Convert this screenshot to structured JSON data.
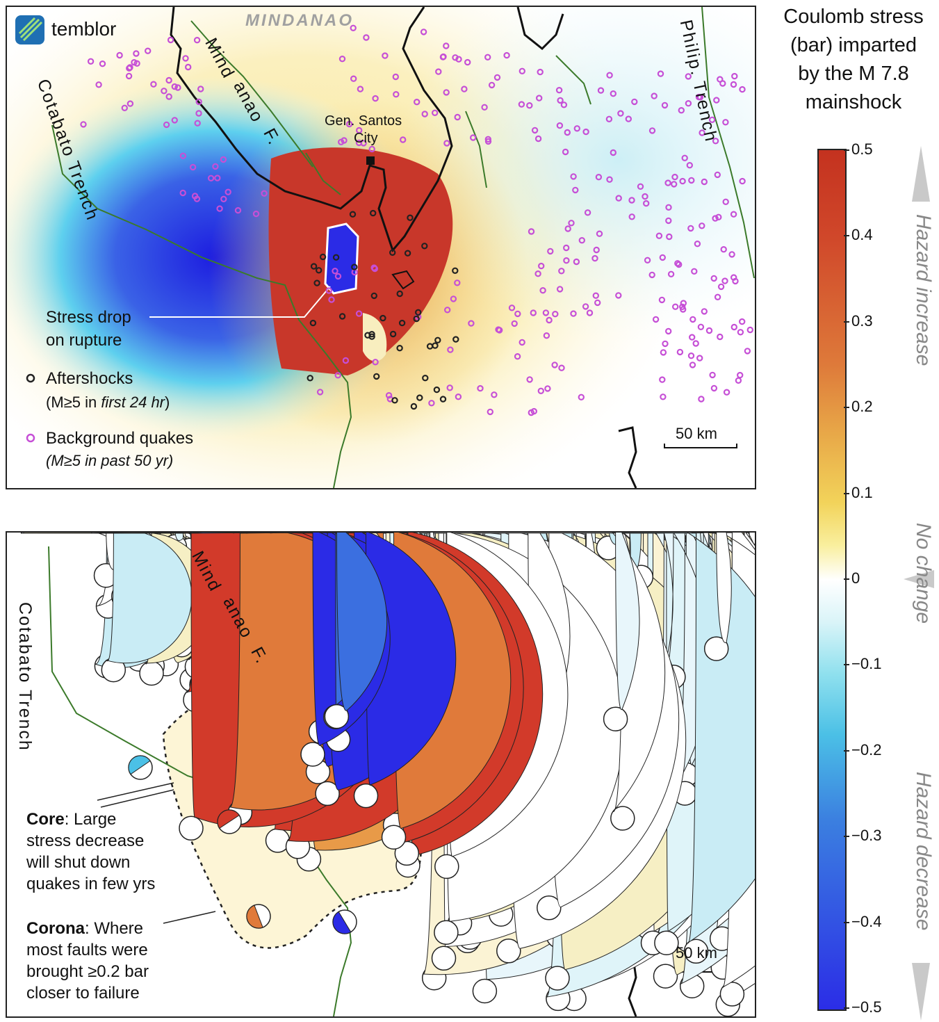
{
  "logo": {
    "name": "temblor"
  },
  "top_map": {
    "region_label": "MINDANAO",
    "city_label_1": "Gen. Santos",
    "city_label_2": "City",
    "fault_label_1": "Mind",
    "fault_label_2": "anao",
    "fault_label_3": "F.",
    "trench_left": "Cotabato Trench",
    "trench_right": "Philip. Trench",
    "stress_drop_1": "Stress drop",
    "stress_drop_2": "on rupture",
    "legend_aftershocks": "Aftershocks",
    "legend_aftershocks_sub_1": "(M≥5 in ",
    "legend_aftershocks_sub_2": "first 24 hr",
    "legend_aftershocks_sub_3": ")",
    "legend_background": "Background quakes",
    "legend_background_sub": "(M≥5 in past 50 yr)",
    "scale": "50 km",
    "colors": {
      "aftershock": "#222222",
      "background_quake": "#c64fd6",
      "fault": "#3b7a2a"
    }
  },
  "bottom_map": {
    "trench_left": "Cotabato Trench",
    "fault_label_1": "Mind",
    "fault_label_2": "anao",
    "fault_label_3": "F.",
    "core_bold": "Core",
    "core_text_1": ":  Large",
    "core_text_2": "stress decrease",
    "core_text_3": "will shut down",
    "core_text_4": "quakes in few yrs",
    "corona_bold": "Corona",
    "corona_text_1": ":   Where",
    "corona_text_2": "most faults were",
    "corona_text_3": "brought ≥0.2 bar",
    "corona_text_4": "closer to failure",
    "scale": "50 km"
  },
  "colorbar": {
    "title_1": "Coulomb stress",
    "title_2": "(bar) imparted",
    "title_3": "by the M 7.8",
    "title_4": "mainshock",
    "ticks": [
      "0.5",
      "0.4",
      "0.3",
      "0.2",
      "0.1",
      "0",
      "−0.1",
      "−0.2",
      "−0.3",
      "−0.4",
      "−0.5"
    ],
    "label_increase": "Hazard increase",
    "label_nochange": "No change",
    "label_decrease": "Hazard decrease"
  }
}
